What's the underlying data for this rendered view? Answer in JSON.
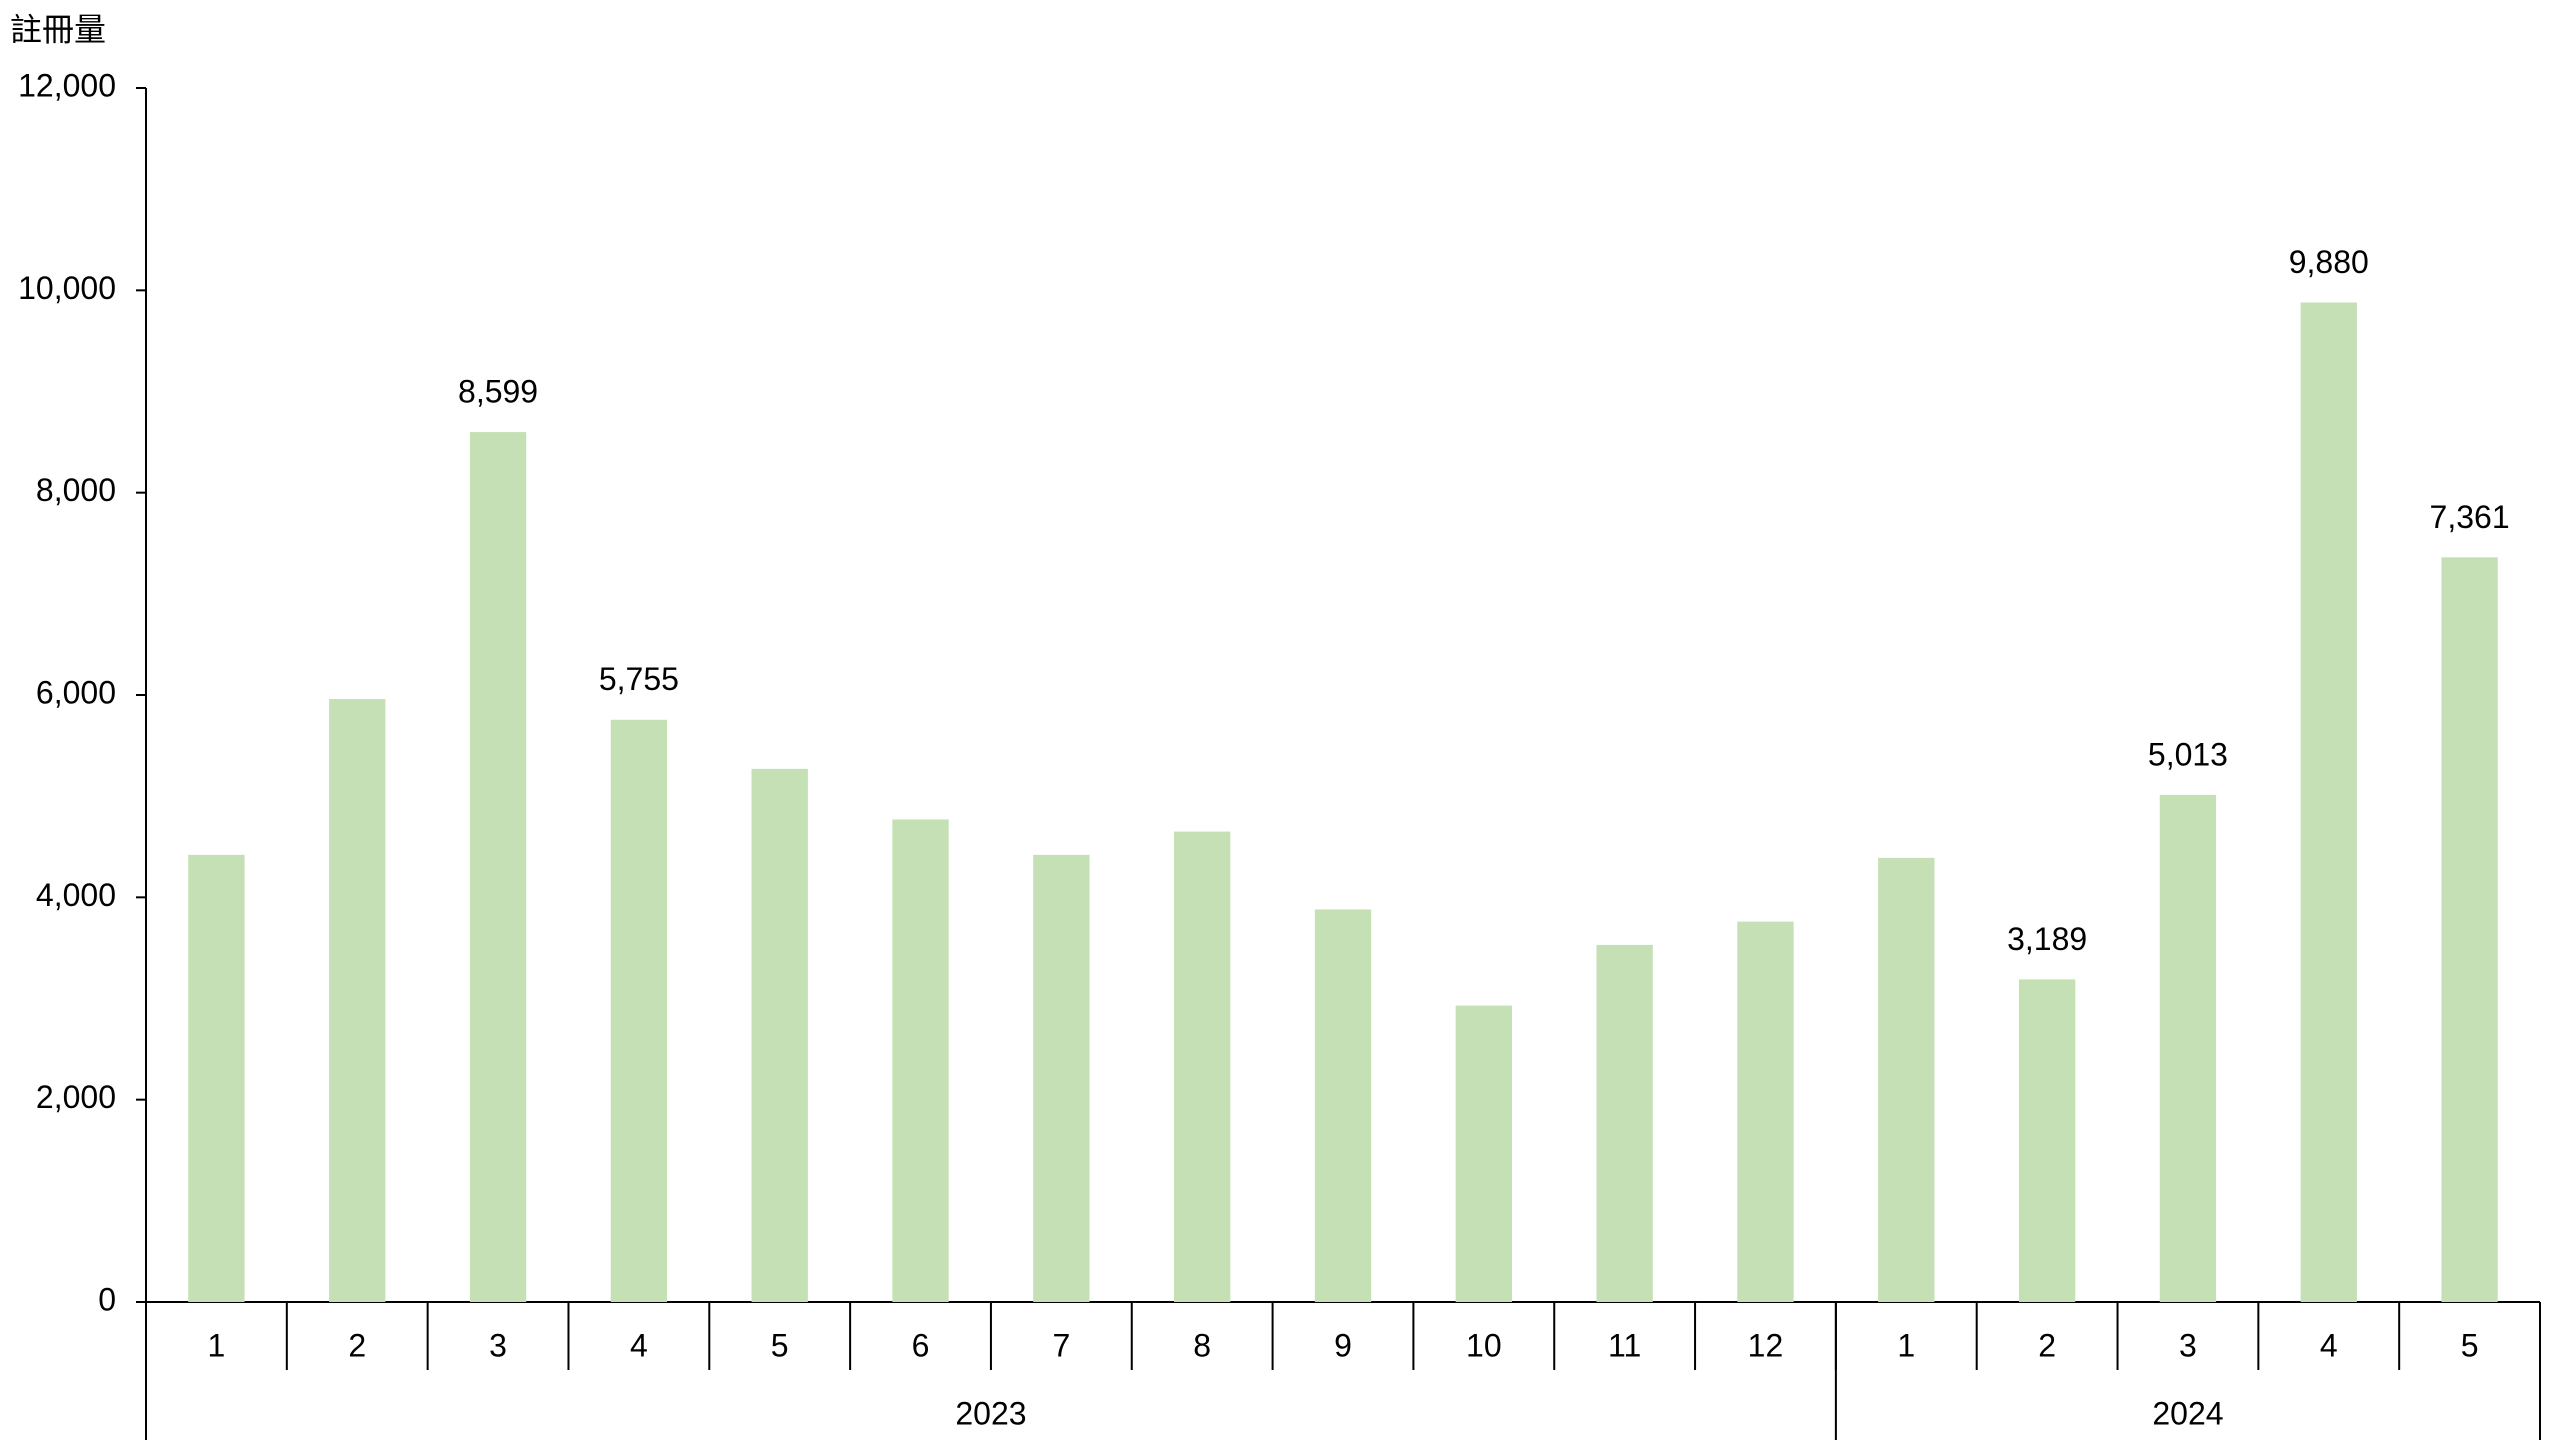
{
  "chart_data": {
    "type": "bar",
    "y_axis_label": "註冊量",
    "categories": [
      "1",
      "2",
      "3",
      "4",
      "5",
      "6",
      "7",
      "8",
      "9",
      "10",
      "11",
      "12",
      "1",
      "2",
      "3",
      "4",
      "5"
    ],
    "x_groups": [
      {
        "label": "2023",
        "span": 12
      },
      {
        "label": "2024",
        "span": 5
      }
    ],
    "values": [
      4420,
      5960,
      8599,
      5755,
      5270,
      4770,
      4420,
      4650,
      3880,
      2930,
      3530,
      3760,
      4390,
      3189,
      5013,
      9880,
      7361
    ],
    "value_labels": [
      null,
      null,
      "8,599",
      "5,755",
      null,
      null,
      null,
      null,
      null,
      null,
      null,
      null,
      null,
      "3,189",
      "5,013",
      "9,880",
      "7,361"
    ],
    "color": "#c5e0b4",
    "ylim": [
      0,
      12000
    ],
    "yticks": [
      0,
      {
        "value": 2000,
        "label": "2,000"
      },
      {
        "value": 4000,
        "label": "4,000"
      },
      {
        "value": 6000,
        "label": "6,000"
      },
      {
        "value": 8000,
        "label": "8,000"
      },
      {
        "value": 10000,
        "label": "10,000"
      },
      {
        "value": 12000,
        "label": "12,000"
      }
    ],
    "grid": false
  }
}
